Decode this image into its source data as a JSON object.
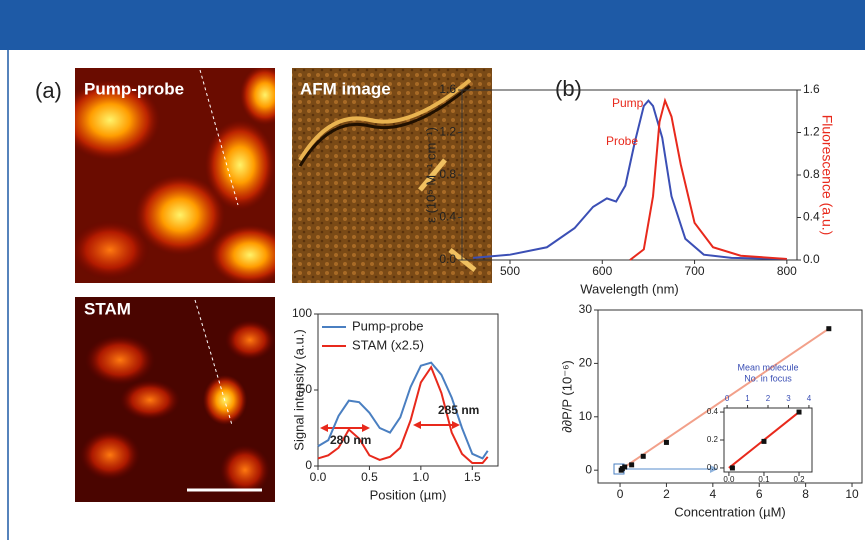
{
  "panel_labels": [
    "(a)",
    "(b)"
  ],
  "images": [
    {
      "title": "Pump-probe"
    },
    {
      "title": "AFM image"
    },
    {
      "title": "STAM"
    }
  ],
  "chart_data": [
    {
      "type": "line",
      "x_label": "Position (µm)",
      "y_label": "Signal intensity (a.u.)",
      "xlim": [
        0,
        1.75
      ],
      "ylim": [
        0,
        100
      ],
      "xticks": [
        {
          "value": 0,
          "label": "0.0"
        },
        0.5,
        {
          "value": 1,
          "label": "1.0"
        },
        1.5
      ],
      "yticks": [
        0,
        50,
        100
      ],
      "legend": "upper left",
      "series": [
        {
          "name": "Pump-probe",
          "color": "#4a7fc1",
          "style": "line",
          "x": [
            0,
            0.1,
            0.2,
            0.3,
            0.4,
            0.5,
            0.6,
            0.7,
            0.8,
            0.9,
            1.0,
            1.1,
            1.2,
            1.3,
            1.4,
            1.5,
            1.6,
            1.65
          ],
          "values": [
            13,
            17,
            33,
            43,
            42,
            35,
            25,
            22,
            32,
            52,
            66,
            68,
            60,
            45,
            25,
            8,
            5,
            10
          ]
        },
        {
          "name": "STAM (x2.5)",
          "color": "#e8291c",
          "style": "line",
          "x": [
            0,
            0.1,
            0.2,
            0.3,
            0.4,
            0.5,
            0.6,
            0.7,
            0.8,
            0.9,
            1.0,
            1.1,
            1.2,
            1.3,
            1.4,
            1.5,
            1.6,
            1.65
          ],
          "values": [
            5,
            7,
            12,
            24,
            18,
            7,
            4,
            6,
            12,
            30,
            55,
            65,
            48,
            22,
            8,
            2,
            2,
            6
          ]
        }
      ],
      "annotations": [
        "280 nm",
        "285 nm"
      ]
    },
    {
      "type": "line",
      "x_label": "Wavelength (nm)",
      "y_label": "ε (10⁵ M⁻¹ cm⁻¹)",
      "y2_label": "Fluorescence (a.u.)",
      "y2_color": "#e8291c",
      "xlim": [
        448,
        811
      ],
      "ylim": [
        0,
        1.6
      ],
      "y2lim": [
        0,
        1.6
      ],
      "xticks": [
        500,
        600,
        700,
        800
      ],
      "yticks": [
        {
          "value": 0,
          "label": "0.0"
        },
        0.4,
        0.8,
        1.2,
        1.6
      ],
      "y2ticks": [
        {
          "value": 0,
          "label": "0.0"
        },
        0.4,
        0.8,
        1.2,
        1.6
      ],
      "series": [
        {
          "color": "#3b4fb5",
          "style": "line",
          "x": [
            460,
            500,
            540,
            570,
            590,
            605,
            615,
            625,
            635,
            645,
            650,
            655,
            665,
            675,
            690,
            710,
            740,
            800
          ],
          "values": [
            0.02,
            0.05,
            0.12,
            0.3,
            0.5,
            0.58,
            0.55,
            0.7,
            1.1,
            1.45,
            1.5,
            1.45,
            1.15,
            0.6,
            0.2,
            0.05,
            0.02,
            0.01
          ]
        },
        {
          "color": "#e8291c",
          "style": "line",
          "axis": "y2",
          "x": [
            630,
            645,
            655,
            662,
            668,
            675,
            685,
            700,
            720,
            750,
            800
          ],
          "values": [
            0,
            0.1,
            0.6,
            1.3,
            1.5,
            1.35,
            0.9,
            0.35,
            0.12,
            0.04,
            0.01
          ]
        }
      ],
      "annotations": [
        "Pump",
        "Probe"
      ]
    },
    {
      "type": "scatter",
      "x_label": "Concentration (µM)",
      "y_label": "∂∂P/P (10⁻⁶)",
      "xlim": [
        -0.95,
        10.43
      ],
      "ylim": [
        -2.4,
        30
      ],
      "xticks": [
        0,
        2,
        4,
        6,
        8,
        10
      ],
      "yticks": [
        0,
        10,
        20,
        30
      ],
      "series": [
        {
          "color": "#f2a08a",
          "style": "line",
          "x": [
            0,
            9
          ],
          "values": [
            0,
            26.5
          ]
        },
        {
          "color": "#111111",
          "style": "markers",
          "x": [
            0.05,
            0.1,
            0.2,
            0.5,
            1,
            2,
            9
          ],
          "values": [
            0,
            0.3,
            0.6,
            1,
            2.6,
            5.2,
            26.5
          ]
        }
      ]
    },
    {
      "type": "scatter",
      "x2_label": [
        "Mean molecule",
        "No. in focus"
      ],
      "x2_color": "#3b4fb5",
      "xlim": [
        -0.014,
        0.237
      ],
      "ylim": [
        -0.029,
        0.429
      ],
      "x2lim": [
        -0.15,
        4.15
      ],
      "xticks": [
        {
          "value": 0,
          "label": "0.0"
        },
        0.1,
        0.2
      ],
      "yticks": [
        {
          "value": 0,
          "label": "0.0"
        },
        0.2,
        0.4
      ],
      "x2ticks": [
        0,
        1,
        2,
        3,
        4
      ],
      "series": [
        {
          "color": "#e8291c",
          "style": "line",
          "x": [
            0,
            0.2
          ],
          "values": [
            0,
            0.4
          ]
        },
        {
          "color": "#111111",
          "style": "markers",
          "x": [
            0.01,
            0.1,
            0.2
          ],
          "values": [
            0,
            0.19,
            0.4
          ]
        }
      ]
    }
  ]
}
